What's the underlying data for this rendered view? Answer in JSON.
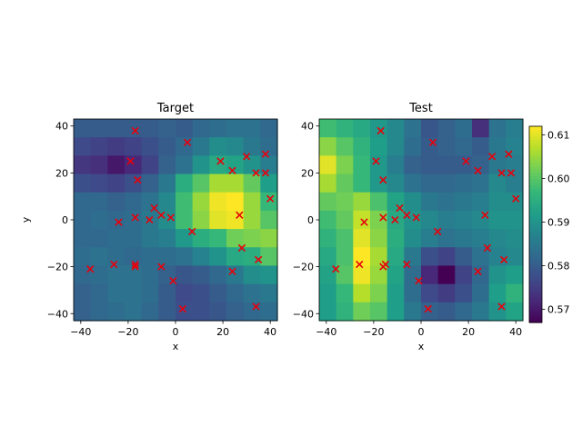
{
  "chart_data": [
    {
      "type": "heatmap",
      "title": "Target",
      "xlabel": "x",
      "ylabel": "y",
      "xlim": [
        -43,
        43
      ],
      "ylim": [
        -43,
        43
      ],
      "xticks": [
        -40,
        -20,
        0,
        20,
        40
      ],
      "yticks": [
        -40,
        -20,
        0,
        20,
        40
      ],
      "colormap": "viridis",
      "grid_rows_top_to_bottom": [
        [
          0.58,
          0.58,
          0.58,
          0.58,
          0.58,
          0.581,
          0.58,
          0.582,
          0.583,
          0.584,
          0.584,
          0.582
        ],
        [
          0.577,
          0.576,
          0.575,
          0.576,
          0.578,
          0.58,
          0.582,
          0.585,
          0.589,
          0.588,
          0.585,
          0.583
        ],
        [
          0.574,
          0.573,
          0.57,
          0.572,
          0.576,
          0.581,
          0.584,
          0.59,
          0.594,
          0.593,
          0.59,
          0.586
        ],
        [
          0.578,
          0.577,
          0.576,
          0.578,
          0.581,
          0.585,
          0.595,
          0.6,
          0.606,
          0.606,
          0.601,
          0.592
        ],
        [
          0.582,
          0.582,
          0.581,
          0.582,
          0.584,
          0.588,
          0.598,
          0.605,
          0.611,
          0.612,
          0.605,
          0.597
        ],
        [
          0.582,
          0.583,
          0.582,
          0.583,
          0.585,
          0.589,
          0.598,
          0.604,
          0.61,
          0.611,
          0.605,
          0.6
        ],
        [
          0.582,
          0.582,
          0.583,
          0.583,
          0.585,
          0.586,
          0.591,
          0.595,
          0.597,
          0.602,
          0.603,
          0.604
        ],
        [
          0.583,
          0.584,
          0.583,
          0.582,
          0.583,
          0.583,
          0.584,
          0.587,
          0.59,
          0.594,
          0.595,
          0.6
        ],
        [
          0.582,
          0.583,
          0.584,
          0.584,
          0.583,
          0.581,
          0.579,
          0.58,
          0.582,
          0.585,
          0.589,
          0.59
        ],
        [
          0.581,
          0.582,
          0.584,
          0.584,
          0.583,
          0.58,
          0.577,
          0.578,
          0.58,
          0.582,
          0.584,
          0.585
        ],
        [
          0.581,
          0.582,
          0.583,
          0.584,
          0.582,
          0.58,
          0.578,
          0.578,
          0.579,
          0.581,
          0.582,
          0.583
        ]
      ],
      "points": [
        [
          -17,
          38
        ],
        [
          5,
          33
        ],
        [
          -19,
          25
        ],
        [
          19,
          25
        ],
        [
          30,
          27
        ],
        [
          38,
          28
        ],
        [
          -16,
          17
        ],
        [
          24,
          21
        ],
        [
          34,
          20
        ],
        [
          38,
          20
        ],
        [
          40,
          9
        ],
        [
          -9,
          5
        ],
        [
          -6,
          2
        ],
        [
          -2,
          1
        ],
        [
          -17,
          1
        ],
        [
          -11,
          0
        ],
        [
          -24,
          -1
        ],
        [
          27,
          2
        ],
        [
          7,
          -5
        ],
        [
          28,
          -12
        ],
        [
          -36,
          -21
        ],
        [
          -26,
          -19
        ],
        [
          -17,
          -19
        ],
        [
          -17,
          -20
        ],
        [
          -6,
          -20
        ],
        [
          24,
          -22
        ],
        [
          35,
          -17
        ],
        [
          -1,
          -26
        ],
        [
          3,
          -38
        ],
        [
          34,
          -37
        ]
      ]
    },
    {
      "type": "heatmap",
      "title": "Test",
      "xlabel": "x",
      "ylabel": "",
      "xlim": [
        -43,
        43
      ],
      "ylim": [
        -43,
        43
      ],
      "xticks": [
        -40,
        -20,
        0,
        20,
        40
      ],
      "yticks": [
        -40,
        -20,
        0,
        20,
        40
      ],
      "colormap": "viridis",
      "colorbar": {
        "min": 0.567,
        "max": 0.612,
        "ticks": [
          0.57,
          0.58,
          0.59,
          0.6,
          0.61
        ]
      },
      "grid_rows_top_to_bottom": [
        [
          0.598,
          0.596,
          0.594,
          0.591,
          0.588,
          0.584,
          0.579,
          0.581,
          0.583,
          0.573,
          0.584,
          0.586
        ],
        [
          0.604,
          0.6,
          0.596,
          0.592,
          0.588,
          0.583,
          0.58,
          0.581,
          0.582,
          0.58,
          0.585,
          0.587
        ],
        [
          0.61,
          0.603,
          0.597,
          0.591,
          0.586,
          0.581,
          0.58,
          0.58,
          0.58,
          0.581,
          0.585,
          0.586
        ],
        [
          0.606,
          0.601,
          0.597,
          0.591,
          0.588,
          0.584,
          0.582,
          0.582,
          0.583,
          0.584,
          0.588,
          0.586
        ],
        [
          0.601,
          0.602,
          0.605,
          0.599,
          0.593,
          0.589,
          0.585,
          0.584,
          0.585,
          0.586,
          0.589,
          0.589
        ],
        [
          0.598,
          0.601,
          0.608,
          0.603,
          0.594,
          0.59,
          0.588,
          0.586,
          0.587,
          0.588,
          0.59,
          0.59
        ],
        [
          0.596,
          0.599,
          0.61,
          0.604,
          0.595,
          0.589,
          0.586,
          0.584,
          0.585,
          0.586,
          0.588,
          0.589
        ],
        [
          0.594,
          0.599,
          0.612,
          0.606,
          0.594,
          0.585,
          0.578,
          0.576,
          0.58,
          0.584,
          0.587,
          0.588
        ],
        [
          0.593,
          0.6,
          0.611,
          0.605,
          0.593,
          0.583,
          0.572,
          0.567,
          0.576,
          0.582,
          0.59,
          0.592
        ],
        [
          0.592,
          0.597,
          0.607,
          0.603,
          0.592,
          0.583,
          0.577,
          0.575,
          0.578,
          0.583,
          0.592,
          0.596
        ],
        [
          0.592,
          0.596,
          0.602,
          0.6,
          0.592,
          0.585,
          0.581,
          0.58,
          0.582,
          0.585,
          0.59,
          0.593
        ]
      ],
      "points": [
        [
          -17,
          38
        ],
        [
          5,
          33
        ],
        [
          -19,
          25
        ],
        [
          19,
          25
        ],
        [
          30,
          27
        ],
        [
          37,
          28
        ],
        [
          -16,
          17
        ],
        [
          24,
          21
        ],
        [
          34,
          20
        ],
        [
          38,
          20
        ],
        [
          40,
          9
        ],
        [
          -9,
          5
        ],
        [
          -6,
          2
        ],
        [
          -2,
          1
        ],
        [
          -16,
          1
        ],
        [
          -11,
          0
        ],
        [
          -24,
          -1
        ],
        [
          27,
          2
        ],
        [
          7,
          -5
        ],
        [
          28,
          -12
        ],
        [
          -36,
          -21
        ],
        [
          -26,
          -19
        ],
        [
          -15,
          -19
        ],
        [
          -16,
          -20
        ],
        [
          -6,
          -19
        ],
        [
          24,
          -22
        ],
        [
          35,
          -17
        ],
        [
          -1,
          -26
        ],
        [
          3,
          -38
        ],
        [
          34,
          -37
        ]
      ]
    }
  ]
}
